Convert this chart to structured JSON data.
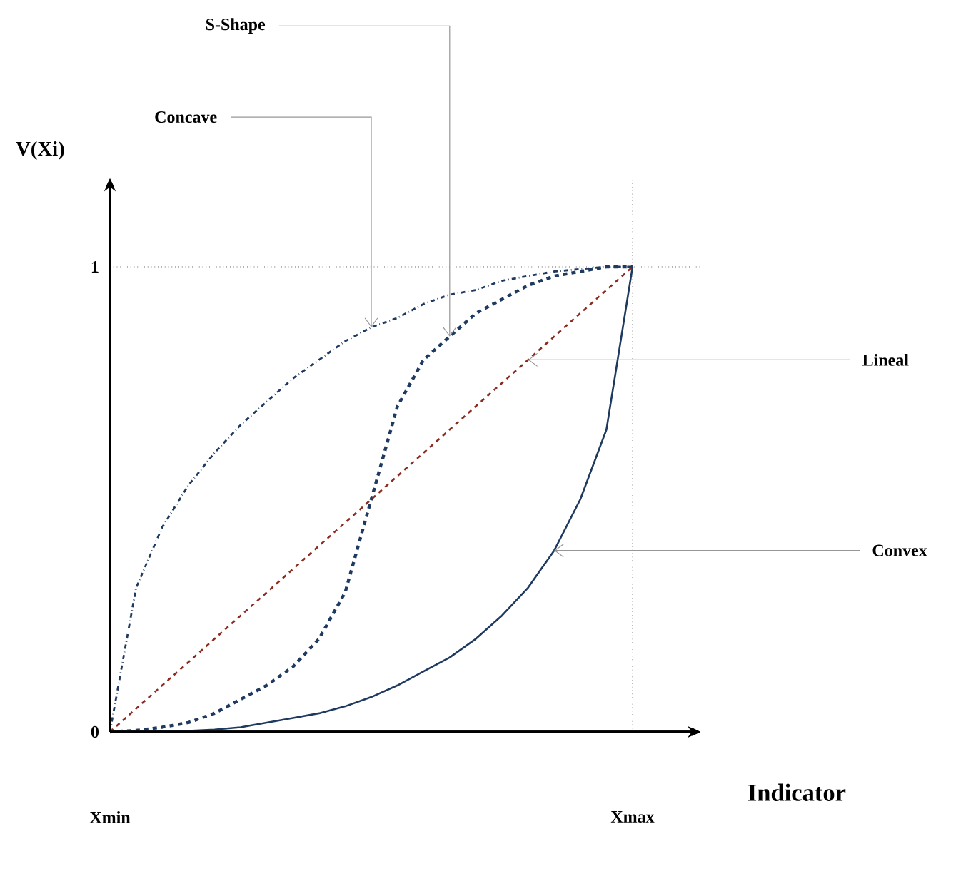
{
  "chart_data": {
    "type": "line",
    "xlabel": "Indicator",
    "ylabel": "V(Xi)",
    "categories": [
      "Xmin",
      null,
      null,
      null,
      null,
      null,
      null,
      null,
      null,
      null,
      null,
      null,
      null,
      null,
      null,
      null,
      null,
      null,
      null,
      null,
      "Xmax"
    ],
    "ylim": [
      0,
      1.19
    ],
    "yticks": [
      0,
      1
    ],
    "grid": true,
    "series": [
      {
        "color": "#1f3a60",
        "line_style": "dashdot",
        "values": [
          0,
          0.31,
          0.44,
          0.53,
          0.6,
          0.66,
          0.71,
          0.76,
          0.8,
          0.84,
          0.87,
          0.89,
          0.92,
          0.94,
          0.95,
          0.97,
          0.98,
          0.99,
          0.995,
          1,
          1
        ]
      },
      {
        "color": "#1f3a60",
        "line_style": "dashed",
        "values": [
          0,
          0.003,
          0.01,
          0.02,
          0.04,
          0.07,
          0.1,
          0.14,
          0.2,
          0.3,
          0.5,
          0.7,
          0.8,
          0.85,
          0.9,
          0.93,
          0.96,
          0.98,
          0.99,
          1,
          1
        ]
      },
      {
        "color": "#8b2a1e",
        "line_style": "dashed",
        "values": [
          0,
          0.05,
          0.1,
          0.15,
          0.2,
          0.25,
          0.3,
          0.35,
          0.4,
          0.45,
          0.5,
          0.55,
          0.6,
          0.65,
          0.7,
          0.75,
          0.8,
          0.85,
          0.9,
          0.95,
          1
        ]
      },
      {
        "color": "#1f3a60",
        "line_style": "solid",
        "values": [
          0,
          0,
          0,
          0.002,
          0.005,
          0.01,
          0.02,
          0.03,
          0.04,
          0.055,
          0.075,
          0.1,
          0.13,
          0.16,
          0.2,
          0.25,
          0.31,
          0.39,
          0.5,
          0.65,
          1
        ]
      }
    ],
    "annotations": [
      "S-Shape",
      "Concave",
      "Lineal",
      "Convex"
    ]
  }
}
